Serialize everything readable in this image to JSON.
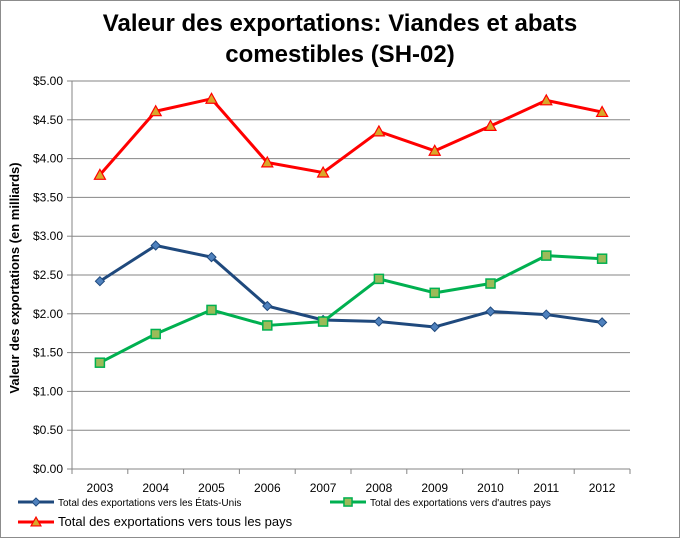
{
  "chart_data": {
    "type": "line",
    "title_line1": "Valeur des exportations: Viandes et abats",
    "title_line2": "comestibles  (SH-02)",
    "ylabel": "Valeur des exportations (en milliards)",
    "xlabel": "",
    "categories": [
      "2003",
      "2004",
      "2005",
      "2006",
      "2007",
      "2008",
      "2009",
      "2010",
      "2011",
      "2012"
    ],
    "ylim": [
      0,
      5
    ],
    "yticks": [
      0,
      0.5,
      1,
      1.5,
      2,
      2.5,
      3,
      3.5,
      4,
      4.5,
      5
    ],
    "ytick_labels": [
      "$0.00",
      "$0.50",
      "$1.00",
      "$1.50",
      "$2.00",
      "$2.50",
      "$3.00",
      "$3.50",
      "$4.00",
      "$4.50",
      "$5.00"
    ],
    "grid": true,
    "legend_position": "bottom",
    "series": [
      {
        "name": "Total des exportations vers les États-Unis",
        "color": "#1F497D",
        "marker": "diamond",
        "values": [
          2.42,
          2.88,
          2.73,
          2.1,
          1.92,
          1.9,
          1.83,
          2.03,
          1.99,
          1.89
        ]
      },
      {
        "name": "Total des exportations vers d'autres pays",
        "color": "#00B050",
        "marker": "square",
        "values": [
          1.37,
          1.74,
          2.05,
          1.85,
          1.9,
          2.45,
          2.27,
          2.39,
          2.75,
          2.71
        ]
      },
      {
        "name": "Total des exportations vers tous les pays",
        "color": "#FF0000",
        "marker": "triangle",
        "values": [
          3.79,
          4.61,
          4.77,
          3.95,
          3.82,
          4.35,
          4.1,
          4.42,
          4.75,
          4.6
        ]
      }
    ]
  }
}
